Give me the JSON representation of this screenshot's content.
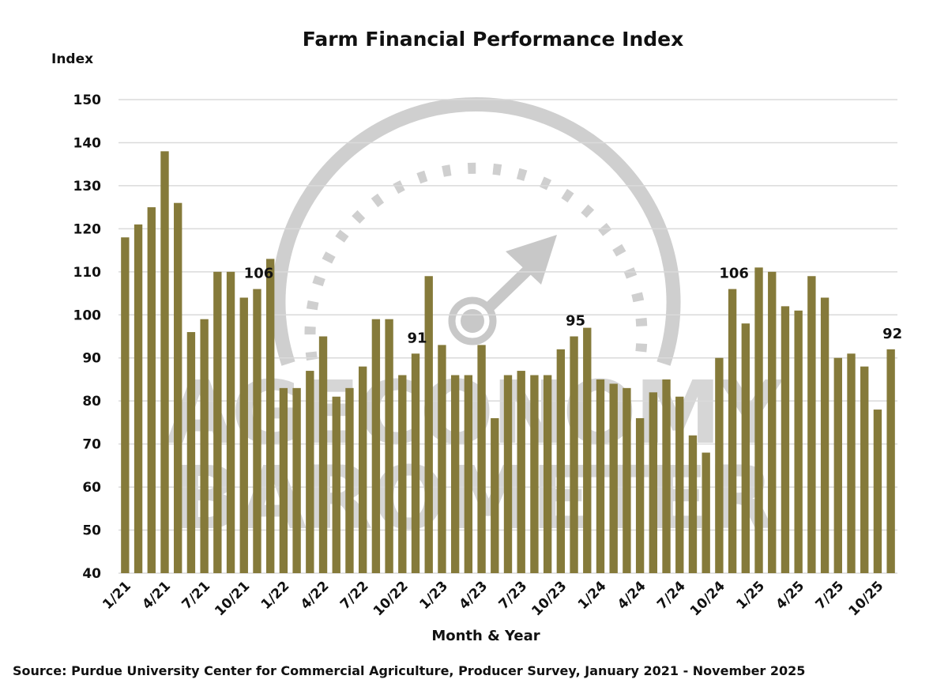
{
  "chart_data": {
    "type": "bar",
    "title": "Farm Financial Performance Index",
    "ylabel": "Index",
    "xlabel": "Month & Year",
    "source": "Source: Purdue University Center for Commercial Agriculture, Producer Survey, January 2021 - November 2025",
    "ylim": [
      40,
      150
    ],
    "yticks": [
      40,
      50,
      60,
      70,
      80,
      90,
      100,
      110,
      120,
      130,
      140,
      150
    ],
    "grid": true,
    "bar_color": "#857a3a",
    "watermark": "AG ECONOMY BAROMETER",
    "categories": [
      "1/21",
      "2/21",
      "3/21",
      "4/21",
      "5/21",
      "6/21",
      "7/21",
      "8/21",
      "9/21",
      "10/21",
      "11/21",
      "12/21",
      "1/22",
      "2/22",
      "3/22",
      "4/22",
      "5/22",
      "6/22",
      "7/22",
      "8/22",
      "9/22",
      "10/22",
      "11/22",
      "12/22",
      "1/23",
      "2/23",
      "3/23",
      "4/23",
      "5/23",
      "6/23",
      "7/23",
      "8/23",
      "9/23",
      "10/23",
      "11/23",
      "12/23",
      "1/24",
      "2/24",
      "3/24",
      "4/24",
      "5/24",
      "6/24",
      "7/24",
      "8/24",
      "9/24",
      "10/24",
      "11/24",
      "12/24",
      "1/25",
      "2/25",
      "3/25",
      "4/25",
      "5/25",
      "6/25",
      "7/25",
      "8/25",
      "9/25",
      "10/25",
      "11/25"
    ],
    "xtick_labels": [
      "1/21",
      "4/21",
      "7/21",
      "10/21",
      "1/22",
      "4/22",
      "7/22",
      "10/22",
      "1/23",
      "4/23",
      "7/23",
      "10/23",
      "1/24",
      "4/24",
      "7/24",
      "10/24",
      "1/25",
      "4/25",
      "7/25",
      "10/25"
    ],
    "values": [
      118,
      121,
      125,
      138,
      126,
      96,
      99,
      110,
      110,
      104,
      106,
      113,
      83,
      83,
      87,
      95,
      81,
      83,
      88,
      99,
      99,
      86,
      91,
      109,
      93,
      86,
      86,
      93,
      76,
      86,
      87,
      86,
      86,
      92,
      95,
      97,
      85,
      84,
      83,
      76,
      82,
      85,
      81,
      72,
      68,
      90,
      106,
      98,
      111,
      110,
      102,
      101,
      109,
      104,
      90,
      91,
      88,
      78,
      92
    ],
    "data_labels": [
      {
        "category": "11/21",
        "text": "106"
      },
      {
        "category": "11/22",
        "text": "91"
      },
      {
        "category": "11/23",
        "text": "95"
      },
      {
        "category": "11/24",
        "text": "106"
      },
      {
        "category": "11/25",
        "text": "92"
      }
    ]
  }
}
